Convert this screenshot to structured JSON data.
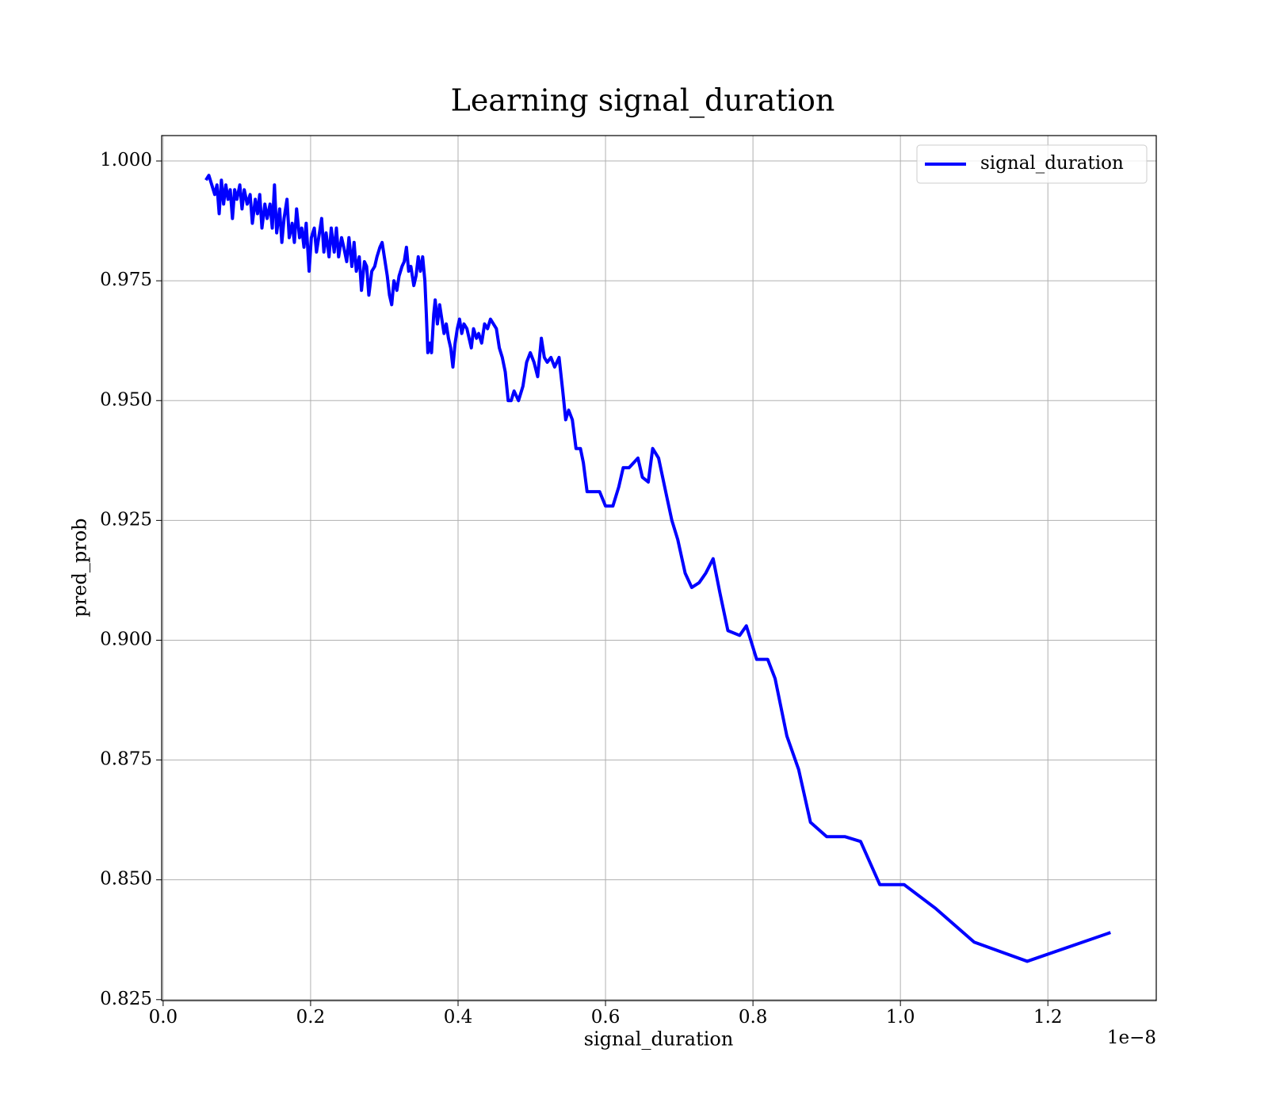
{
  "chart_data": {
    "type": "line",
    "title": "Learning signal_duration",
    "xlabel": "signal_duration",
    "ylabel": "pred_prob",
    "x_offset_text": "1e−8",
    "xlim": [
      -0.002,
      1.347
    ],
    "ylim": [
      0.8248,
      1.0053
    ],
    "xticks": [
      {
        "value": 0,
        "label": "0.0"
      },
      0.2,
      0.4,
      0.6,
      0.8,
      {
        "value": 1,
        "label": "1.0"
      },
      1.2
    ],
    "yticks": [
      {
        "value": 0.825,
        "label": "0.825"
      },
      {
        "value": 0.85,
        "label": "0.850"
      },
      0.875,
      {
        "value": 0.9,
        "label": "0.900"
      },
      0.925,
      {
        "value": 0.95,
        "label": "0.950"
      },
      0.975,
      {
        "value": 1,
        "label": "1.000"
      }
    ],
    "grid": true,
    "legend": "upper right",
    "x": [
      0.058,
      0.062,
      0.066,
      0.07,
      0.073,
      0.076,
      0.079,
      0.082,
      0.085,
      0.088,
      0.091,
      0.094,
      0.097,
      0.1,
      0.104,
      0.107,
      0.11,
      0.114,
      0.118,
      0.121,
      0.125,
      0.128,
      0.131,
      0.134,
      0.138,
      0.141,
      0.145,
      0.148,
      0.151,
      0.154,
      0.158,
      0.161,
      0.164,
      0.168,
      0.171,
      0.175,
      0.178,
      0.181,
      0.185,
      0.188,
      0.191,
      0.194,
      0.198,
      0.201,
      0.205,
      0.208,
      0.212,
      0.215,
      0.218,
      0.221,
      0.225,
      0.228,
      0.232,
      0.235,
      0.238,
      0.242,
      0.245,
      0.249,
      0.252,
      0.256,
      0.259,
      0.262,
      0.266,
      0.269,
      0.273,
      0.276,
      0.279,
      0.283,
      0.287,
      0.29,
      0.294,
      0.297,
      0.301,
      0.304,
      0.307,
      0.31,
      0.313,
      0.317,
      0.32,
      0.324,
      0.327,
      0.33,
      0.333,
      0.336,
      0.34,
      0.343,
      0.346,
      0.349,
      0.352,
      0.355,
      0.357,
      0.359,
      0.362,
      0.364,
      0.367,
      0.369,
      0.372,
      0.375,
      0.378,
      0.381,
      0.384,
      0.387,
      0.39,
      0.393,
      0.396,
      0.399,
      0.402,
      0.405,
      0.408,
      0.412,
      0.415,
      0.418,
      0.421,
      0.425,
      0.428,
      0.432,
      0.436,
      0.44,
      0.444,
      0.448,
      0.452,
      0.456,
      0.46,
      0.464,
      0.468,
      0.472,
      0.476,
      0.482,
      0.488,
      0.493,
      0.498,
      0.503,
      0.508,
      0.513,
      0.517,
      0.521,
      0.526,
      0.531,
      0.537,
      0.542,
      0.546,
      0.55,
      0.555,
      0.56,
      0.566,
      0.57,
      0.575,
      0.582,
      0.592,
      0.6,
      0.61,
      0.618,
      0.624,
      0.632,
      0.644,
      0.65,
      0.658,
      0.664,
      0.672,
      0.683,
      0.69,
      0.698,
      0.708,
      0.717,
      0.727,
      0.736,
      0.746,
      0.755,
      0.766,
      0.782,
      0.791,
      0.805,
      0.82,
      0.83,
      0.846,
      0.862,
      0.878,
      0.9,
      0.925,
      0.946,
      0.972,
      1.005,
      1.048,
      1.1,
      1.172,
      1.285
    ],
    "series": [
      {
        "name": "signal_duration",
        "color": "#0000ff",
        "values": [
          0.996,
          0.997,
          0.995,
          0.993,
          0.995,
          0.989,
          0.996,
          0.991,
          0.995,
          0.992,
          0.994,
          0.988,
          0.994,
          0.992,
          0.995,
          0.99,
          0.994,
          0.991,
          0.993,
          0.987,
          0.992,
          0.989,
          0.993,
          0.986,
          0.991,
          0.988,
          0.991,
          0.986,
          0.995,
          0.985,
          0.99,
          0.983,
          0.988,
          0.992,
          0.984,
          0.987,
          0.983,
          0.99,
          0.984,
          0.986,
          0.982,
          0.987,
          0.977,
          0.984,
          0.986,
          0.981,
          0.985,
          0.988,
          0.981,
          0.985,
          0.98,
          0.986,
          0.981,
          0.986,
          0.98,
          0.984,
          0.982,
          0.979,
          0.984,
          0.978,
          0.983,
          0.977,
          0.98,
          0.973,
          0.979,
          0.978,
          0.972,
          0.977,
          0.978,
          0.98,
          0.982,
          0.983,
          0.979,
          0.976,
          0.972,
          0.97,
          0.975,
          0.973,
          0.976,
          0.978,
          0.979,
          0.982,
          0.977,
          0.978,
          0.974,
          0.976,
          0.98,
          0.977,
          0.98,
          0.975,
          0.968,
          0.96,
          0.962,
          0.96,
          0.968,
          0.971,
          0.966,
          0.97,
          0.967,
          0.964,
          0.966,
          0.963,
          0.961,
          0.957,
          0.962,
          0.965,
          0.967,
          0.964,
          0.966,
          0.965,
          0.963,
          0.961,
          0.965,
          0.963,
          0.964,
          0.962,
          0.966,
          0.965,
          0.967,
          0.966,
          0.965,
          0.961,
          0.959,
          0.956,
          0.95,
          0.95,
          0.952,
          0.95,
          0.953,
          0.958,
          0.96,
          0.958,
          0.955,
          0.963,
          0.959,
          0.958,
          0.959,
          0.957,
          0.959,
          0.952,
          0.946,
          0.948,
          0.946,
          0.94,
          0.94,
          0.937,
          0.931,
          0.931,
          0.931,
          0.928,
          0.928,
          0.932,
          0.936,
          0.936,
          0.938,
          0.934,
          0.933,
          0.94,
          0.938,
          0.93,
          0.925,
          0.921,
          0.914,
          0.911,
          0.912,
          0.914,
          0.917,
          0.91,
          0.902,
          0.901,
          0.903,
          0.896,
          0.896,
          0.892,
          0.88,
          0.873,
          0.862,
          0.859,
          0.859,
          0.858,
          0.849,
          0.849,
          0.844,
          0.837,
          0.833,
          0.839
        ]
      }
    ]
  }
}
